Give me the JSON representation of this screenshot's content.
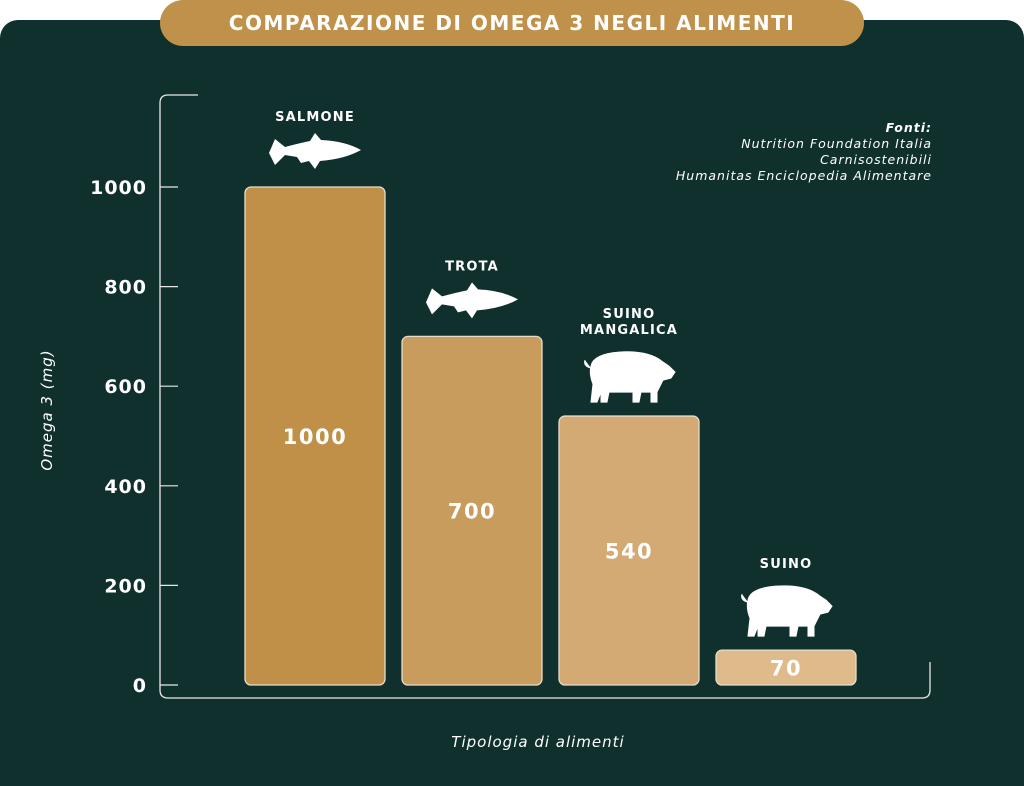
{
  "chart_data": {
    "type": "bar",
    "title": "COMPARAZIONE DI OMEGA 3 NEGLI ALIMENTI",
    "categories": [
      "SALMONE",
      "TROTA",
      "SUINO MANGALICA",
      "SUINO"
    ],
    "category_lines": [
      [
        "SALMONE"
      ],
      [
        "TROTA"
      ],
      [
        "SUINO",
        "MANGALICA"
      ],
      [
        "SUINO"
      ]
    ],
    "category_icons": [
      "fish-icon",
      "fish-icon",
      "woolly-pig-icon",
      "pig-icon"
    ],
    "values": [
      1000,
      700,
      540,
      70
    ],
    "value_labels": [
      "1000",
      "700",
      "540",
      "70"
    ],
    "bar_colors": [
      "#c09049",
      "#c89c5c",
      "#d3a974",
      "#dfba8a"
    ],
    "xlabel": "Tipologia di alimenti",
    "ylabel": "Omega 3 (mg)",
    "ylim": [
      0,
      1000
    ],
    "yticks": [
      0,
      200,
      400,
      600,
      800,
      1000
    ],
    "ytick_labels": [
      "0",
      "200",
      "400",
      "600",
      "800",
      "1000"
    ],
    "grid": false,
    "sources": {
      "heading": "Fonti:",
      "items": [
        "Nutrition Foundation Italia",
        "Carnisostenibili",
        "Humanitas Enciclopedia Alimentare"
      ]
    }
  },
  "colors": {
    "background": "#10302e",
    "accent": "#c0914a"
  }
}
